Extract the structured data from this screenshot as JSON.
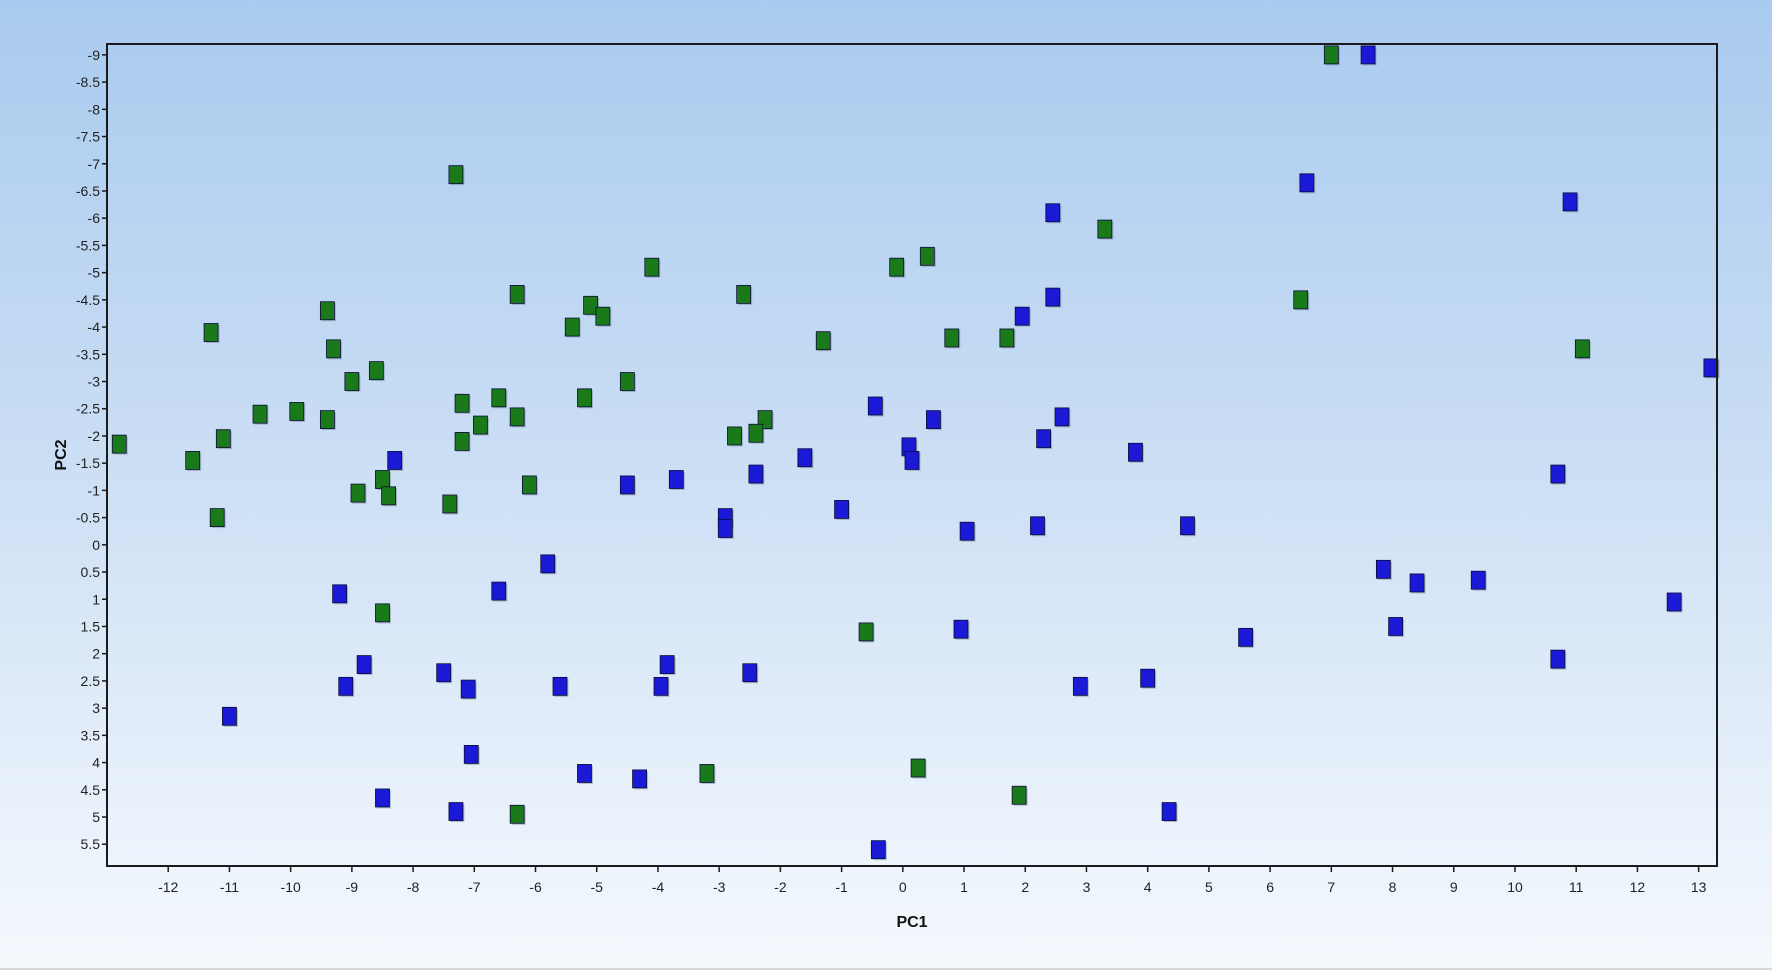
{
  "chart_data": {
    "type": "scatter",
    "title": "",
    "xlabel": "PC1",
    "ylabel": "PC2",
    "xlim": [
      -13,
      13.3
    ],
    "ylim": [
      -9.2,
      5.9
    ],
    "y_axis_inverted": true,
    "grid": false,
    "legend": "none",
    "x_ticks": [
      -12,
      -11,
      -10,
      -9,
      -8,
      -7,
      -6,
      -5,
      -4,
      -3,
      -2,
      -1,
      0,
      1,
      2,
      3,
      4,
      5,
      6,
      7,
      8,
      9,
      10,
      11,
      12,
      13
    ],
    "y_ticks": [
      -9,
      -8.5,
      -8,
      -7.5,
      -7,
      -6.5,
      -6,
      -5.5,
      -5,
      -4.5,
      -4,
      -3.5,
      -3,
      -2.5,
      -2,
      -1.5,
      -1,
      -0.5,
      0,
      0.5,
      1,
      1.5,
      2,
      2.5,
      3,
      3.5,
      4,
      4.5,
      5,
      5.5
    ],
    "series": [
      {
        "color": "#1a7a1a",
        "marker": "square",
        "points": [
          [
            7.0,
            -9.0
          ],
          [
            -7.3,
            -6.8
          ],
          [
            3.3,
            -5.8
          ],
          [
            0.4,
            -5.3
          ],
          [
            -0.1,
            -5.1
          ],
          [
            -4.1,
            -5.1
          ],
          [
            -6.3,
            -4.6
          ],
          [
            -2.6,
            -4.6
          ],
          [
            6.5,
            -4.5
          ],
          [
            -9.4,
            -4.3
          ],
          [
            -5.1,
            -4.4
          ],
          [
            -4.9,
            -4.2
          ],
          [
            -5.4,
            -4.0
          ],
          [
            -11.3,
            -3.9
          ],
          [
            0.8,
            -3.8
          ],
          [
            1.7,
            -3.8
          ],
          [
            -1.3,
            -3.75
          ],
          [
            11.1,
            -3.6
          ],
          [
            -9.3,
            -3.6
          ],
          [
            -8.6,
            -3.2
          ],
          [
            -9.0,
            -3.0
          ],
          [
            -4.5,
            -3.0
          ],
          [
            -6.6,
            -2.7
          ],
          [
            -5.2,
            -2.7
          ],
          [
            -7.2,
            -2.6
          ],
          [
            -10.5,
            -2.4
          ],
          [
            -9.9,
            -2.45
          ],
          [
            -9.4,
            -2.3
          ],
          [
            -6.3,
            -2.35
          ],
          [
            -6.9,
            -2.2
          ],
          [
            -2.25,
            -2.3
          ],
          [
            -2.4,
            -2.05
          ],
          [
            -2.75,
            -2.0
          ],
          [
            -7.2,
            -1.9
          ],
          [
            -11.1,
            -1.95
          ],
          [
            -12.8,
            -1.85
          ],
          [
            -11.6,
            -1.55
          ],
          [
            -8.5,
            -1.2
          ],
          [
            -8.9,
            -0.95
          ],
          [
            -8.4,
            -0.9
          ],
          [
            -6.1,
            -1.1
          ],
          [
            -7.4,
            -0.75
          ],
          [
            -11.2,
            -0.5
          ],
          [
            -8.5,
            1.25
          ],
          [
            -0.6,
            1.6
          ],
          [
            -3.2,
            4.2
          ],
          [
            0.25,
            4.1
          ],
          [
            1.9,
            4.6
          ],
          [
            -6.3,
            4.95
          ]
        ]
      },
      {
        "color": "#1a1ad6",
        "marker": "square",
        "points": [
          [
            7.6,
            -9.0
          ],
          [
            6.6,
            -6.65
          ],
          [
            10.9,
            -6.3
          ],
          [
            2.45,
            -6.1
          ],
          [
            2.45,
            -4.55
          ],
          [
            1.95,
            -4.2
          ],
          [
            13.2,
            -3.25
          ],
          [
            -0.45,
            -2.55
          ],
          [
            2.6,
            -2.35
          ],
          [
            0.5,
            -2.3
          ],
          [
            2.3,
            -1.95
          ],
          [
            0.1,
            -1.8
          ],
          [
            3.8,
            -1.7
          ],
          [
            -1.6,
            -1.6
          ],
          [
            -8.3,
            -1.55
          ],
          [
            0.15,
            -1.55
          ],
          [
            10.7,
            -1.3
          ],
          [
            -2.4,
            -1.3
          ],
          [
            -3.7,
            -1.2
          ],
          [
            -4.5,
            -1.1
          ],
          [
            -1.0,
            -0.65
          ],
          [
            -2.9,
            -0.5
          ],
          [
            -2.9,
            -0.3
          ],
          [
            2.2,
            -0.35
          ],
          [
            4.65,
            -0.35
          ],
          [
            1.05,
            -0.25
          ],
          [
            -5.8,
            0.35
          ],
          [
            -9.2,
            0.9
          ],
          [
            -6.6,
            0.85
          ],
          [
            7.85,
            0.45
          ],
          [
            8.4,
            0.7
          ],
          [
            9.4,
            0.65
          ],
          [
            12.6,
            1.05
          ],
          [
            8.05,
            1.5
          ],
          [
            0.95,
            1.55
          ],
          [
            5.6,
            1.7
          ],
          [
            10.7,
            2.1
          ],
          [
            -8.8,
            2.2
          ],
          [
            -3.85,
            2.2
          ],
          [
            -7.5,
            2.35
          ],
          [
            -2.5,
            2.35
          ],
          [
            4.0,
            2.45
          ],
          [
            -9.1,
            2.6
          ],
          [
            -7.1,
            2.65
          ],
          [
            -5.6,
            2.6
          ],
          [
            -3.95,
            2.6
          ],
          [
            2.9,
            2.6
          ],
          [
            -11.0,
            3.15
          ],
          [
            -7.05,
            3.85
          ],
          [
            -5.2,
            4.2
          ],
          [
            -4.3,
            4.3
          ],
          [
            -8.5,
            4.65
          ],
          [
            -7.3,
            4.9
          ],
          [
            4.35,
            4.9
          ],
          [
            -0.4,
            5.6
          ]
        ]
      }
    ]
  }
}
